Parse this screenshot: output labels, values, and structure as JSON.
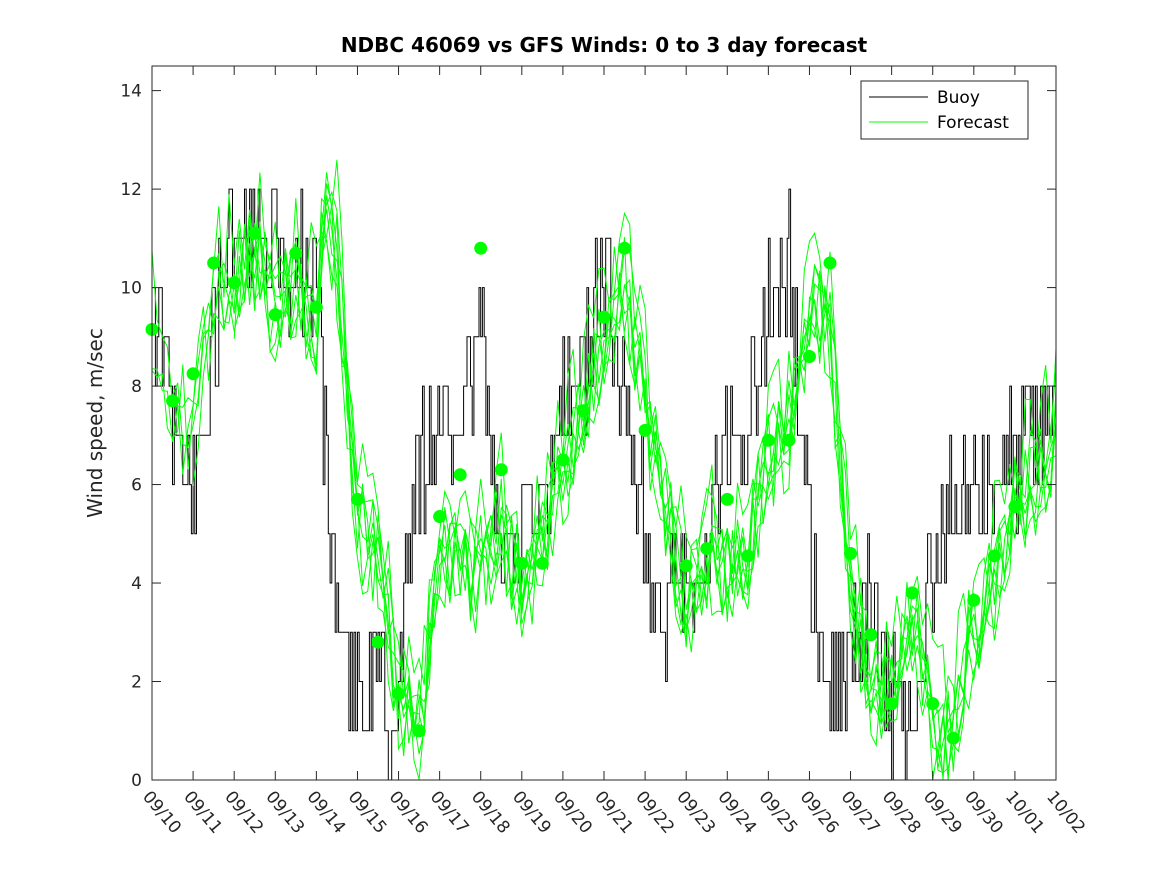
{
  "chart_data": {
    "type": "line",
    "title": "NDBC 46069 vs GFS Winds: 0 to 3 day forecast",
    "xlabel": "",
    "ylabel": "Wind speed, m/sec",
    "ylim": [
      0,
      14.5
    ],
    "yticks": [
      0,
      2,
      4,
      6,
      8,
      10,
      12,
      14
    ],
    "xlim": [
      0,
      22
    ],
    "x_unit": "days from 09/10",
    "xtick_labels": [
      "09/10",
      "09/11",
      "09/12",
      "09/13",
      "09/14",
      "09/15",
      "09/16",
      "09/17",
      "09/18",
      "09/19",
      "09/20",
      "09/21",
      "09/22",
      "09/23",
      "09/24",
      "09/25",
      "09/26",
      "09/27",
      "09/28",
      "09/29",
      "09/30",
      "10/01",
      "10/02"
    ],
    "legend": {
      "position": "top-right",
      "entries": [
        "Buoy",
        "Forecast"
      ]
    },
    "colors": {
      "buoy": "#000000",
      "forecast": "#00ff00",
      "axis": "#262626"
    },
    "grid": false,
    "buoy_trend": {
      "x": [
        0,
        0.5,
        1,
        1.5,
        2,
        2.5,
        3,
        3.5,
        4,
        4.5,
        5,
        5.5,
        5.8,
        6,
        6.2,
        6.5,
        7,
        7.5,
        8,
        8.5,
        9,
        9.5,
        10,
        10.5,
        11,
        11.5,
        12,
        12.5,
        13,
        13.5,
        14,
        14.5,
        15,
        15.5,
        16,
        16.5,
        17,
        17.5,
        18,
        18.5,
        19,
        19.5,
        20,
        20.5,
        21,
        21.5,
        22
      ],
      "y": [
        9.5,
        7.5,
        6,
        9,
        11,
        10.5,
        11,
        10.5,
        9.5,
        3,
        1.5,
        2.5,
        0.5,
        1.5,
        4.5,
        6.5,
        7,
        8,
        9,
        4,
        5,
        5,
        7.5,
        8.5,
        10.5,
        7.5,
        5,
        3.5,
        4.5,
        4.5,
        7,
        7,
        9.5,
        10.5,
        4.5,
        2,
        2,
        3.5,
        1.5,
        1.5,
        4.5,
        5.5,
        6,
        6.2,
        6.5,
        7,
        7.5
      ]
    },
    "forecast_points": [
      {
        "x": 0,
        "y": 9.15
      },
      {
        "x": 0.5,
        "y": 7.7
      },
      {
        "x": 1,
        "y": 8.25
      },
      {
        "x": 1.5,
        "y": 10.5
      },
      {
        "x": 2,
        "y": 10.1
      },
      {
        "x": 2.5,
        "y": 11.1
      },
      {
        "x": 3,
        "y": 9.45
      },
      {
        "x": 3.5,
        "y": 10.7
      },
      {
        "x": 4,
        "y": 9.6
      },
      {
        "x": 5,
        "y": 5.7
      },
      {
        "x": 5.5,
        "y": 2.8
      },
      {
        "x": 6,
        "y": 1.75
      },
      {
        "x": 6.5,
        "y": 1
      },
      {
        "x": 7,
        "y": 5.35
      },
      {
        "x": 7.5,
        "y": 6.2
      },
      {
        "x": 8,
        "y": 10.8
      },
      {
        "x": 8.5,
        "y": 6.3
      },
      {
        "x": 9,
        "y": 4.4
      },
      {
        "x": 9.5,
        "y": 4.4
      },
      {
        "x": 10,
        "y": 6.5
      },
      {
        "x": 10.5,
        "y": 7.5
      },
      {
        "x": 11,
        "y": 9.4
      },
      {
        "x": 11.5,
        "y": 10.8
      },
      {
        "x": 12,
        "y": 7.1
      },
      {
        "x": 13,
        "y": 4.35
      },
      {
        "x": 13.5,
        "y": 4.7
      },
      {
        "x": 14,
        "y": 5.7
      },
      {
        "x": 14.5,
        "y": 4.55
      },
      {
        "x": 15,
        "y": 6.9
      },
      {
        "x": 15.5,
        "y": 6.9
      },
      {
        "x": 16,
        "y": 8.6
      },
      {
        "x": 16.5,
        "y": 10.5
      },
      {
        "x": 17,
        "y": 4.6
      },
      {
        "x": 17.5,
        "y": 2.95
      },
      {
        "x": 18,
        "y": 1.55
      },
      {
        "x": 18.5,
        "y": 3.8
      },
      {
        "x": 19,
        "y": 1.55
      },
      {
        "x": 19.5,
        "y": 0.85
      },
      {
        "x": 20,
        "y": 3.65
      },
      {
        "x": 20.5,
        "y": 4.55
      },
      {
        "x": 21,
        "y": 5.55
      }
    ],
    "forecast_trend": {
      "x": [
        0,
        0.5,
        1,
        1.5,
        2,
        2.5,
        3,
        3.5,
        4,
        4.2,
        4.5,
        5,
        5.5,
        6,
        6.5,
        7,
        7.5,
        8,
        8.5,
        9,
        9.5,
        10,
        10.5,
        11,
        11.5,
        12,
        12.5,
        13,
        13.5,
        14,
        14.5,
        15,
        15.5,
        16,
        16.5,
        17,
        17.5,
        18,
        18.5,
        19,
        19.5,
        20,
        20.5,
        21,
        21.5,
        22
      ],
      "y": [
        9.2,
        7.8,
        7.5,
        10,
        10.5,
        11,
        10,
        10.5,
        9.5,
        12,
        11,
        5.5,
        5,
        2,
        1.5,
        5,
        5,
        4.5,
        5.5,
        4,
        5,
        6.5,
        8,
        9.5,
        10.5,
        8,
        6,
        4,
        5,
        4.5,
        5,
        7,
        7.5,
        10,
        9.5,
        4.5,
        2,
        2.5,
        3.5,
        1.5,
        1.5,
        3.5,
        4.5,
        6,
        6.3,
        7.5
      ]
    }
  }
}
